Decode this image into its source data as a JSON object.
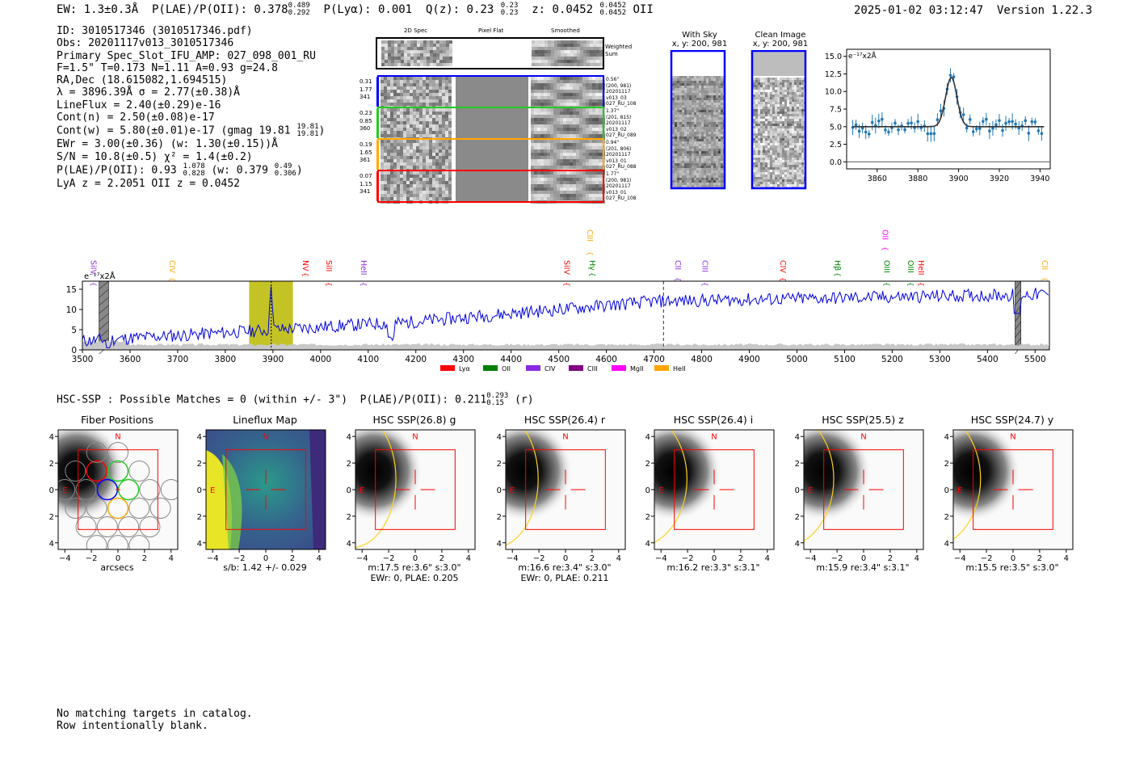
{
  "header": {
    "left": "EW: 1.3±0.3Å  P(LAE)/P(OII): 0.378",
    "plae_hi": "0.489",
    "plae_lo": "0.292",
    "plya": "P(Lyα): 0.001",
    "qz": "Q(z): 0.23",
    "qz_hi": "0.23",
    "qz_lo": "0.23",
    "z": "z: 0.0452",
    "z_hi": "0.0452",
    "z_lo": "0.0452",
    "z_line": "OII",
    "right": "2025-01-02 03:12:47  Version 1.22.3"
  },
  "info": {
    "l1": "ID: 3010517346 (3010517346.pdf)",
    "l2": "Obs: 20201117v013_3010517346",
    "l3": "Primary Spec_Slot_IFU_AMP: 027_098_001_RU",
    "l4": "F=1.5\"  T=0.173  N=1.11  A=0.93  g=24.8",
    "l5": "RA,Dec (18.615082,1.694515)",
    "l6": "λ = 3896.39Å  σ = 2.77(±0.38)Å",
    "l7": "LineFlux = 2.40(±0.29)e-16",
    "l8": "Cont(n) = 2.50(±0.08)e-17",
    "l9": "Cont(w) = 5.80(±0.01)e-17 (gmag 19.81",
    "l9_hi": "19.81",
    "l9_lo": "19.81",
    "l9_end": ")",
    "l10": "EWr = 3.00(±0.36) (w: 1.30(±0.15))Å",
    "l11": "S/N = 10.8(±0.5)  χ² = 1.4(±0.2)",
    "l12": "P(LAE)/P(OII): 0.93",
    "l12_hi": "1.078",
    "l12_lo": "0.828",
    "l12_mid": "(w: 0.379",
    "l12_hi2": "0.49",
    "l12_lo2": "0.306",
    "l12_end": ")",
    "l13": "LyA z = 2.2051  OII z = 0.0452"
  },
  "cutouts": {
    "col1": "2D Spec",
    "col2": "Pixel Flat",
    "col3": "Smoothed",
    "weighted": "Weighted Sum",
    "rows": [
      {
        "a": "0.31",
        "b": "1.77",
        "c": "341",
        "info": [
          "0.56\"",
          "(200, 981)",
          "20201117",
          "v013_03",
          "027_RU_108"
        ],
        "color": "#0000ff"
      },
      {
        "a": "0.23",
        "b": "0.85",
        "c": "360",
        "info": [
          "1.37\"",
          "(201, 815)",
          "20201117",
          "v013_02",
          "027_RU_089"
        ],
        "color": "#22cc22"
      },
      {
        "a": "0.19",
        "b": "1.65",
        "c": "361",
        "info": [
          "0.94\"",
          "(201, 806)",
          "20201117",
          "v013_01",
          "027_RU_088"
        ],
        "color": "#ffaa00"
      },
      {
        "a": "0.07",
        "b": "1.15",
        "c": "341",
        "info": [
          "1.77\"",
          "(200, 981)",
          "20201117",
          "v013_01",
          "027_RU_108"
        ],
        "color": "#ff0000"
      }
    ]
  },
  "sky": {
    "title1": "With Sky",
    "sub1": "x, y: 200, 981",
    "title2": "Clean Image",
    "sub2": "x, y: 200, 981"
  },
  "zoom_chart": {
    "type": "scatter",
    "unit": "e⁻¹⁷x2Å",
    "xlim": [
      3845,
      3945
    ],
    "ylim": [
      -1,
      16
    ],
    "xticks": [
      3860,
      3880,
      3900,
      3920,
      3940
    ],
    "yticks": [
      0.0,
      2.5,
      5.0,
      7.5,
      10.0,
      12.5,
      15.0
    ],
    "baseline": 5.0,
    "peak_x": 3896.4,
    "peak_amp": 7.0,
    "sigma": 2.77
  },
  "spectrum": {
    "unit": "e⁻¹⁷x2Å",
    "xlim": [
      3500,
      5530
    ],
    "ylim": [
      0,
      17
    ],
    "xticks": [
      3500,
      3600,
      3700,
      3800,
      3900,
      4000,
      4100,
      4200,
      4300,
      4400,
      4500,
      4600,
      4700,
      4800,
      4900,
      5000,
      5100,
      5200,
      5300,
      5400,
      5500
    ],
    "yticks": [
      0,
      5,
      10,
      15
    ],
    "lines": [
      {
        "name": "SiIV",
        "x": 3518,
        "color": "#8a2be2",
        "row": 0
      },
      {
        "name": "CIV",
        "x": 3683,
        "color": "#ffa500",
        "row": 0
      },
      {
        "name": "NV",
        "x": 3963,
        "color": "#ff0000",
        "row": 0
      },
      {
        "name": "SiII",
        "x": 4012,
        "color": "#ff0000",
        "row": 0
      },
      {
        "name": "HeII",
        "x": 4085,
        "color": "#8a2be2",
        "row": 0
      },
      {
        "name": "CIII",
        "x": 4560,
        "color": "#ffa500",
        "row": 1
      },
      {
        "name": "SiIV",
        "x": 4512,
        "color": "#ff0000",
        "row": 0
      },
      {
        "name": "Hγ",
        "x": 4565,
        "color": "#008000",
        "row": 0
      },
      {
        "name": "CII",
        "x": 4745,
        "color": "#8a2be2",
        "row": 0
      },
      {
        "name": "CIII",
        "x": 4802,
        "color": "#8a2be2",
        "row": 0
      },
      {
        "name": "CIV",
        "x": 4965,
        "color": "#ff0000",
        "row": 0
      },
      {
        "name": "OII",
        "x": 5180,
        "color": "#ff00ff",
        "row": 1
      },
      {
        "name": "Hβ",
        "x": 5080,
        "color": "#008000",
        "row": 0
      },
      {
        "name": "OIII",
        "x": 5183,
        "color": "#008000",
        "row": 0
      },
      {
        "name": "OIII",
        "x": 5233,
        "color": "#008000",
        "row": 0
      },
      {
        "name": "HeII",
        "x": 5255,
        "color": "#ff0000",
        "row": 0
      },
      {
        "name": "CII",
        "x": 5515,
        "color": "#ffa500",
        "row": 0
      }
    ],
    "legend": [
      {
        "name": "Lyα",
        "color": "#ff0000"
      },
      {
        "name": "OII",
        "color": "#008000"
      },
      {
        "name": "CIV",
        "color": "#8a2be2"
      },
      {
        "name": "CIII",
        "color": "#800080"
      },
      {
        "name": "MgII",
        "color": "#ff00ff"
      },
      {
        "name": "HeII",
        "color": "#ffa500"
      }
    ],
    "highlight": [
      3850,
      3942
    ],
    "peak": 3896.4,
    "dashed": 4720,
    "masks": [
      [
        3535,
        3555
      ],
      [
        5458,
        5470
      ]
    ]
  },
  "hsc": {
    "line": "HSC-SSP : Possible Matches = 0 (within +/- 3\")  P(LAE)/P(OII): 0.211",
    "hi": "0.293",
    "lo": "0.15",
    "end": "(r)"
  },
  "panels": [
    {
      "title": "Fiber Positions",
      "sub1": "arcsecs",
      "sub2": ""
    },
    {
      "title": "Lineflux Map",
      "sub1": "s/b: 1.42 +/- 0.029",
      "sub2": ""
    },
    {
      "title": "HSC SSP(26.8) g",
      "sub1": "m:17.5  re:3.6\"  s:3.0\"",
      "sub2": "EWr: 0, PLAE: 0.205"
    },
    {
      "title": "HSC SSP(26.4) r",
      "sub1": "m:16.6  re:3.4\"  s:3.0\"",
      "sub2": "EWr: 0, PLAE: 0.211"
    },
    {
      "title": "HSC SSP(26.4) i",
      "sub1": "m:16.2  re:3.3\"  s:3.1\"",
      "sub2": ""
    },
    {
      "title": "HSC SSP(25.5) z",
      "sub1": "m:15.9  re:3.4\"  s:3.1\"",
      "sub2": ""
    },
    {
      "title": "HSC SSP(24.7) y",
      "sub1": "m:15.5  re:3.5\"  s:3.0\"",
      "sub2": ""
    }
  ],
  "panel_axes": {
    "xticks": [
      "−4",
      "−2",
      "0",
      "2",
      "4"
    ],
    "yticks": [
      "4",
      "2",
      "0",
      "−2",
      "−4"
    ],
    "n": "N",
    "e": "E"
  },
  "footer": {
    "l1": "No matching targets in catalog.",
    "l2": "Row intentionally blank."
  }
}
